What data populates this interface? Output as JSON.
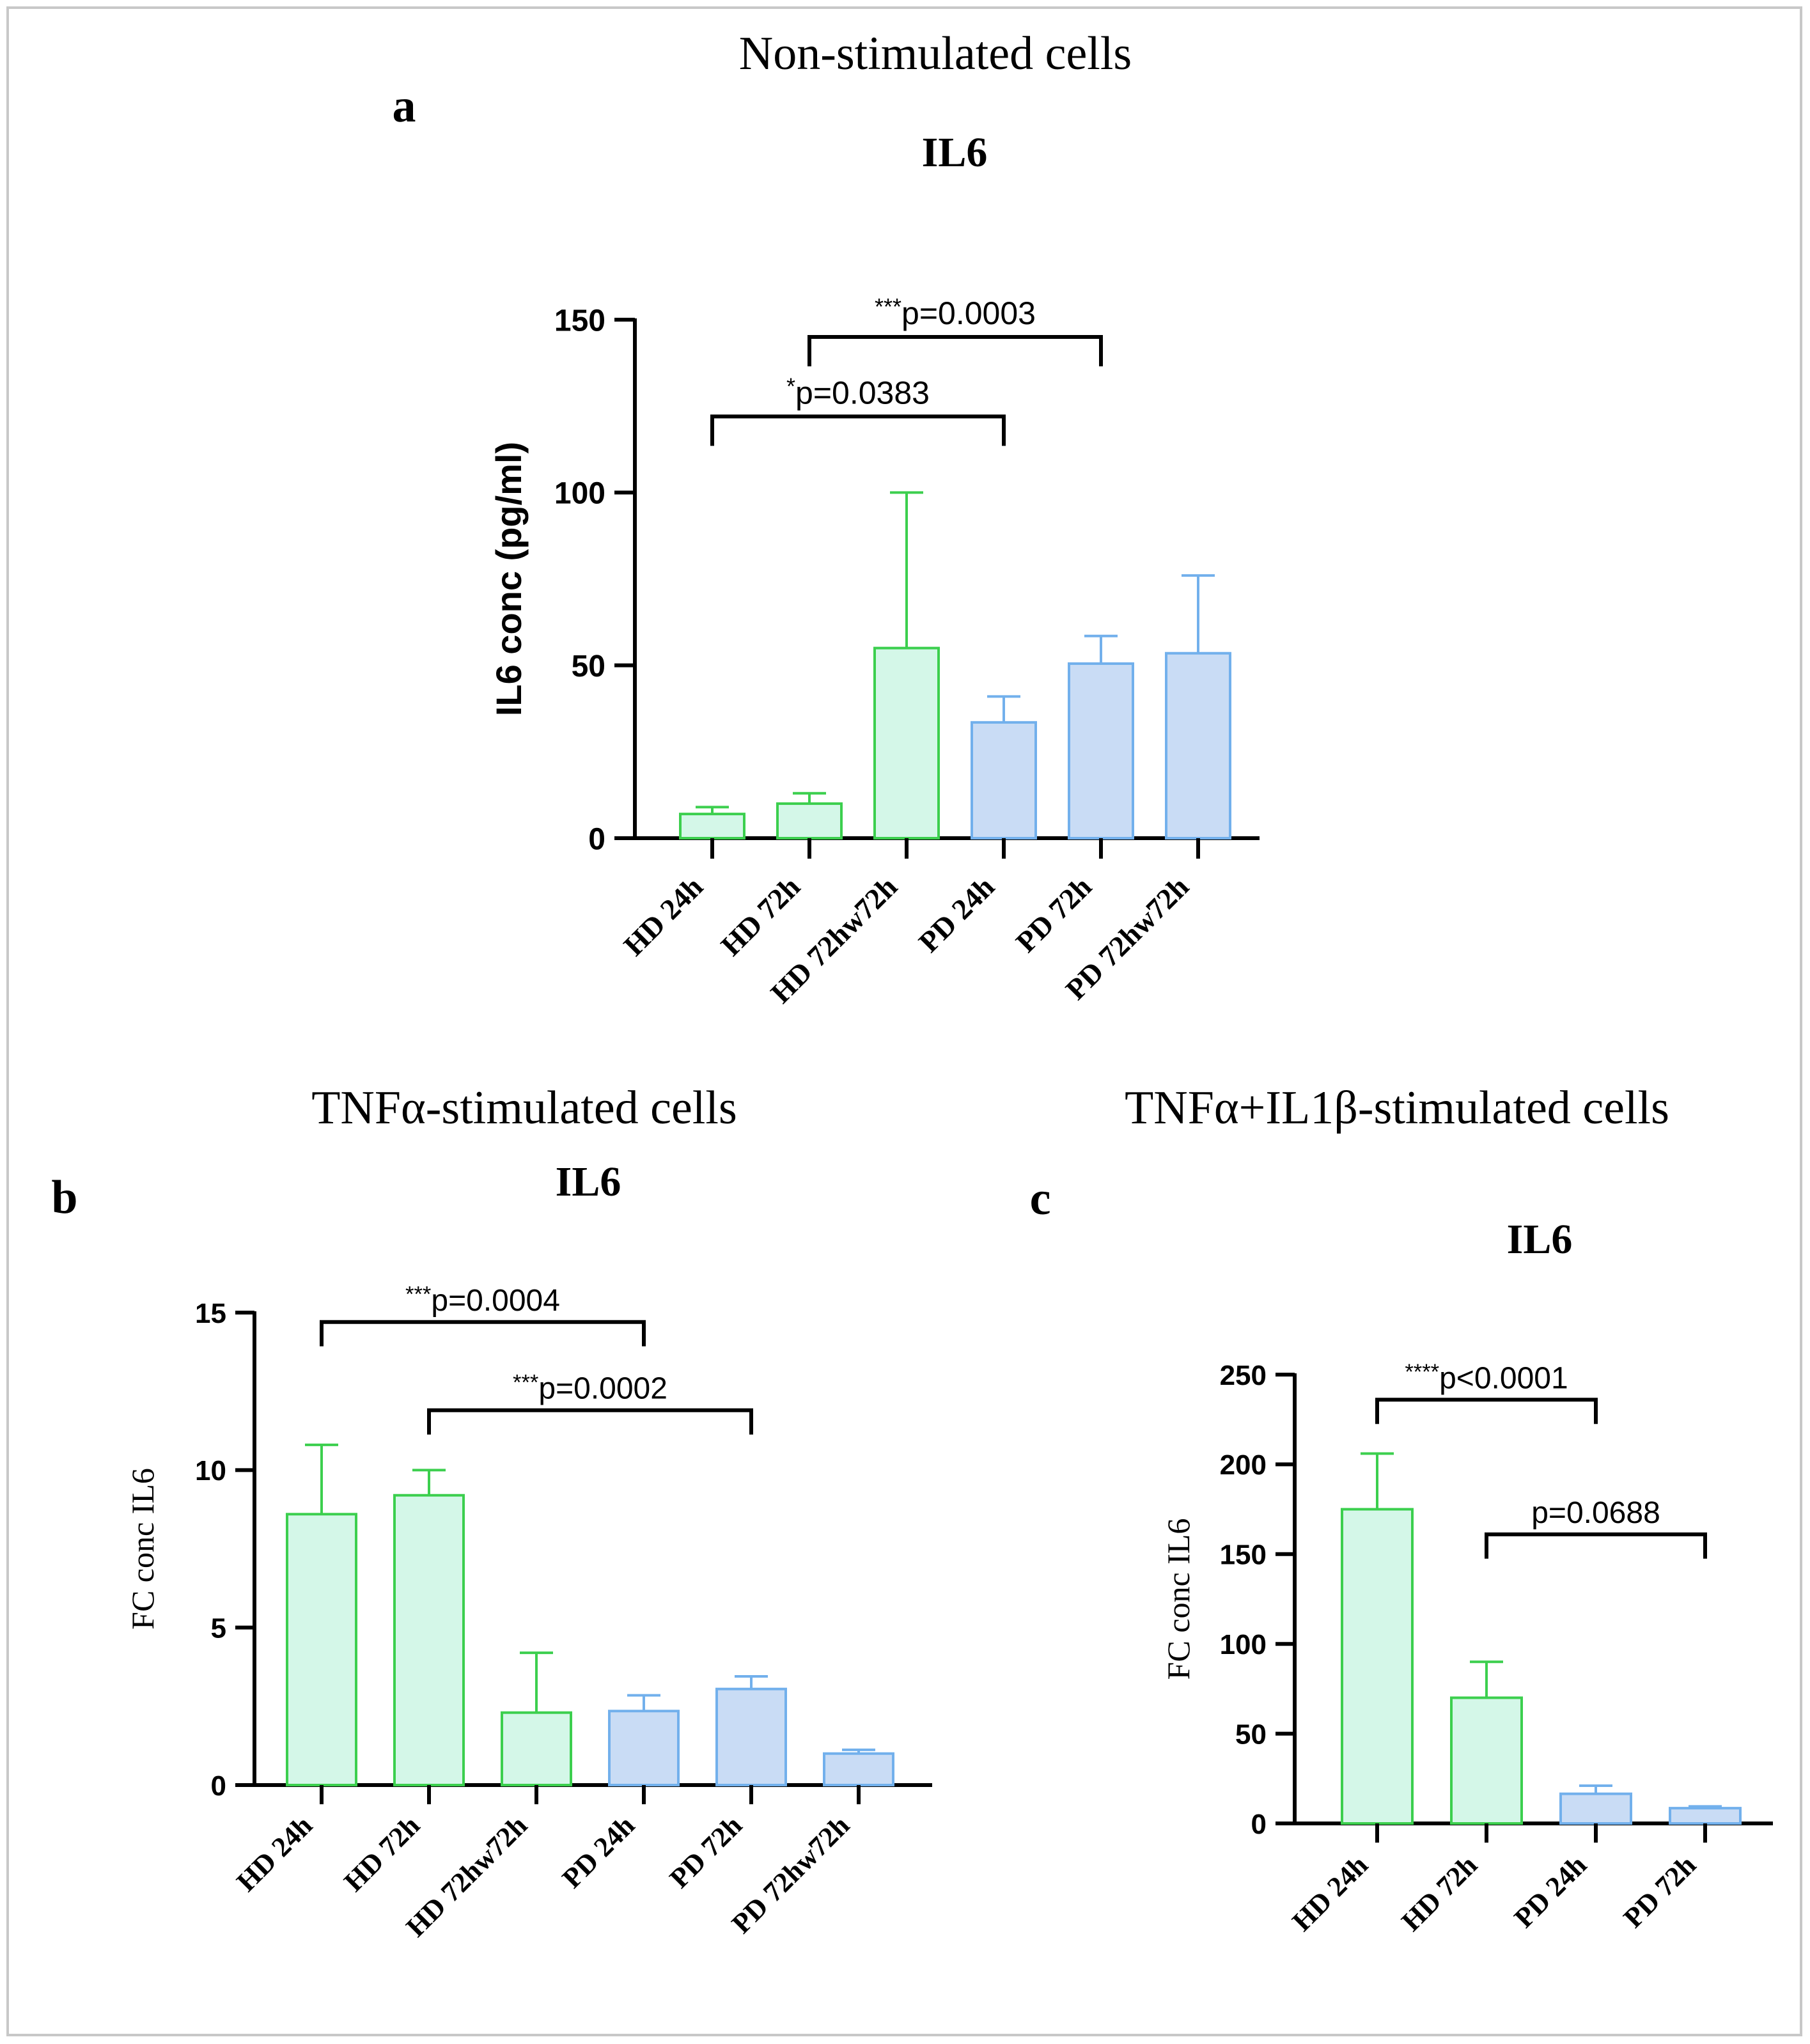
{
  "colors": {
    "hd_fill": "#d4f7e8",
    "hd_stroke": "#3ccf4e",
    "pd_fill": "#c9dcf5",
    "pd_stroke": "#72b0ec",
    "axis": "#000000"
  },
  "chart_data": [
    {
      "id": "a",
      "type": "bar",
      "panel_label": "a",
      "group_title": "Non-stimulated cells",
      "title": "IL6",
      "ylabel": "IL6 conc (pg/ml)",
      "ylim": [
        0,
        150
      ],
      "yticks": [
        "0",
        "50",
        "100",
        "150"
      ],
      "categories": [
        "HD 24h",
        "HD 72h",
        "HD 72hw72h",
        "PD 24h",
        "PD 72h",
        "PD 72hw72h"
      ],
      "groups": [
        "HD",
        "HD",
        "HD",
        "PD",
        "PD",
        "PD"
      ],
      "values": [
        7,
        10,
        55,
        33.5,
        50.5,
        53.5
      ],
      "errors": [
        2,
        3,
        45,
        7.5,
        8,
        22.5
      ],
      "comparisons": [
        {
          "from": 0,
          "to": 3,
          "stars": "*",
          "text": "p=0.0383",
          "level": 122
        },
        {
          "from": 1,
          "to": 4,
          "stars": "***",
          "text": "p=0.0003",
          "level": 145
        }
      ]
    },
    {
      "id": "b",
      "type": "bar",
      "panel_label": "b",
      "group_title": "TNFα-stimulated  cells",
      "title": "IL6",
      "ylabel": "FC conc IL6",
      "ylim": [
        0,
        15
      ],
      "yticks": [
        "0",
        "5",
        "10",
        "15"
      ],
      "categories": [
        "HD 24h",
        "HD 72h",
        "HD 72hw72h",
        "PD 24h",
        "PD 72h",
        "PD 72hw72h"
      ],
      "groups": [
        "HD",
        "HD",
        "HD",
        "PD",
        "PD",
        "PD"
      ],
      "values": [
        8.6,
        9.2,
        2.3,
        2.35,
        3.05,
        1.0
      ],
      "errors": [
        2.2,
        0.8,
        1.9,
        0.5,
        0.4,
        0.12
      ],
      "comparisons": [
        {
          "from": 0,
          "to": 3,
          "stars": "***",
          "text": "p=0.0004",
          "level": 14.7
        },
        {
          "from": 1,
          "to": 4,
          "stars": "***",
          "text": "p=0.0002",
          "level": 11.9
        }
      ]
    },
    {
      "id": "c",
      "type": "bar",
      "panel_label": "c",
      "group_title": "TNFα+IL1β-stimulated  cells",
      "title": "IL6",
      "ylabel": "FC conc IL6",
      "ylim": [
        0,
        250
      ],
      "yticks": [
        "0",
        "50",
        "100",
        "150",
        "200",
        "250"
      ],
      "categories": [
        "HD 24h",
        "HD 72h",
        "PD 24h",
        "PD 72h"
      ],
      "groups": [
        "HD",
        "HD",
        "PD",
        "PD"
      ],
      "values": [
        175,
        70,
        16.5,
        8.5
      ],
      "errors": [
        31,
        20,
        4.5,
        1
      ],
      "comparisons": [
        {
          "from": 0,
          "to": 2,
          "stars": "****",
          "text": "p<0.0001",
          "level": 236
        },
        {
          "from": 1,
          "to": 3,
          "stars": "",
          "text": "p=0.0688",
          "level": 161
        }
      ]
    }
  ]
}
